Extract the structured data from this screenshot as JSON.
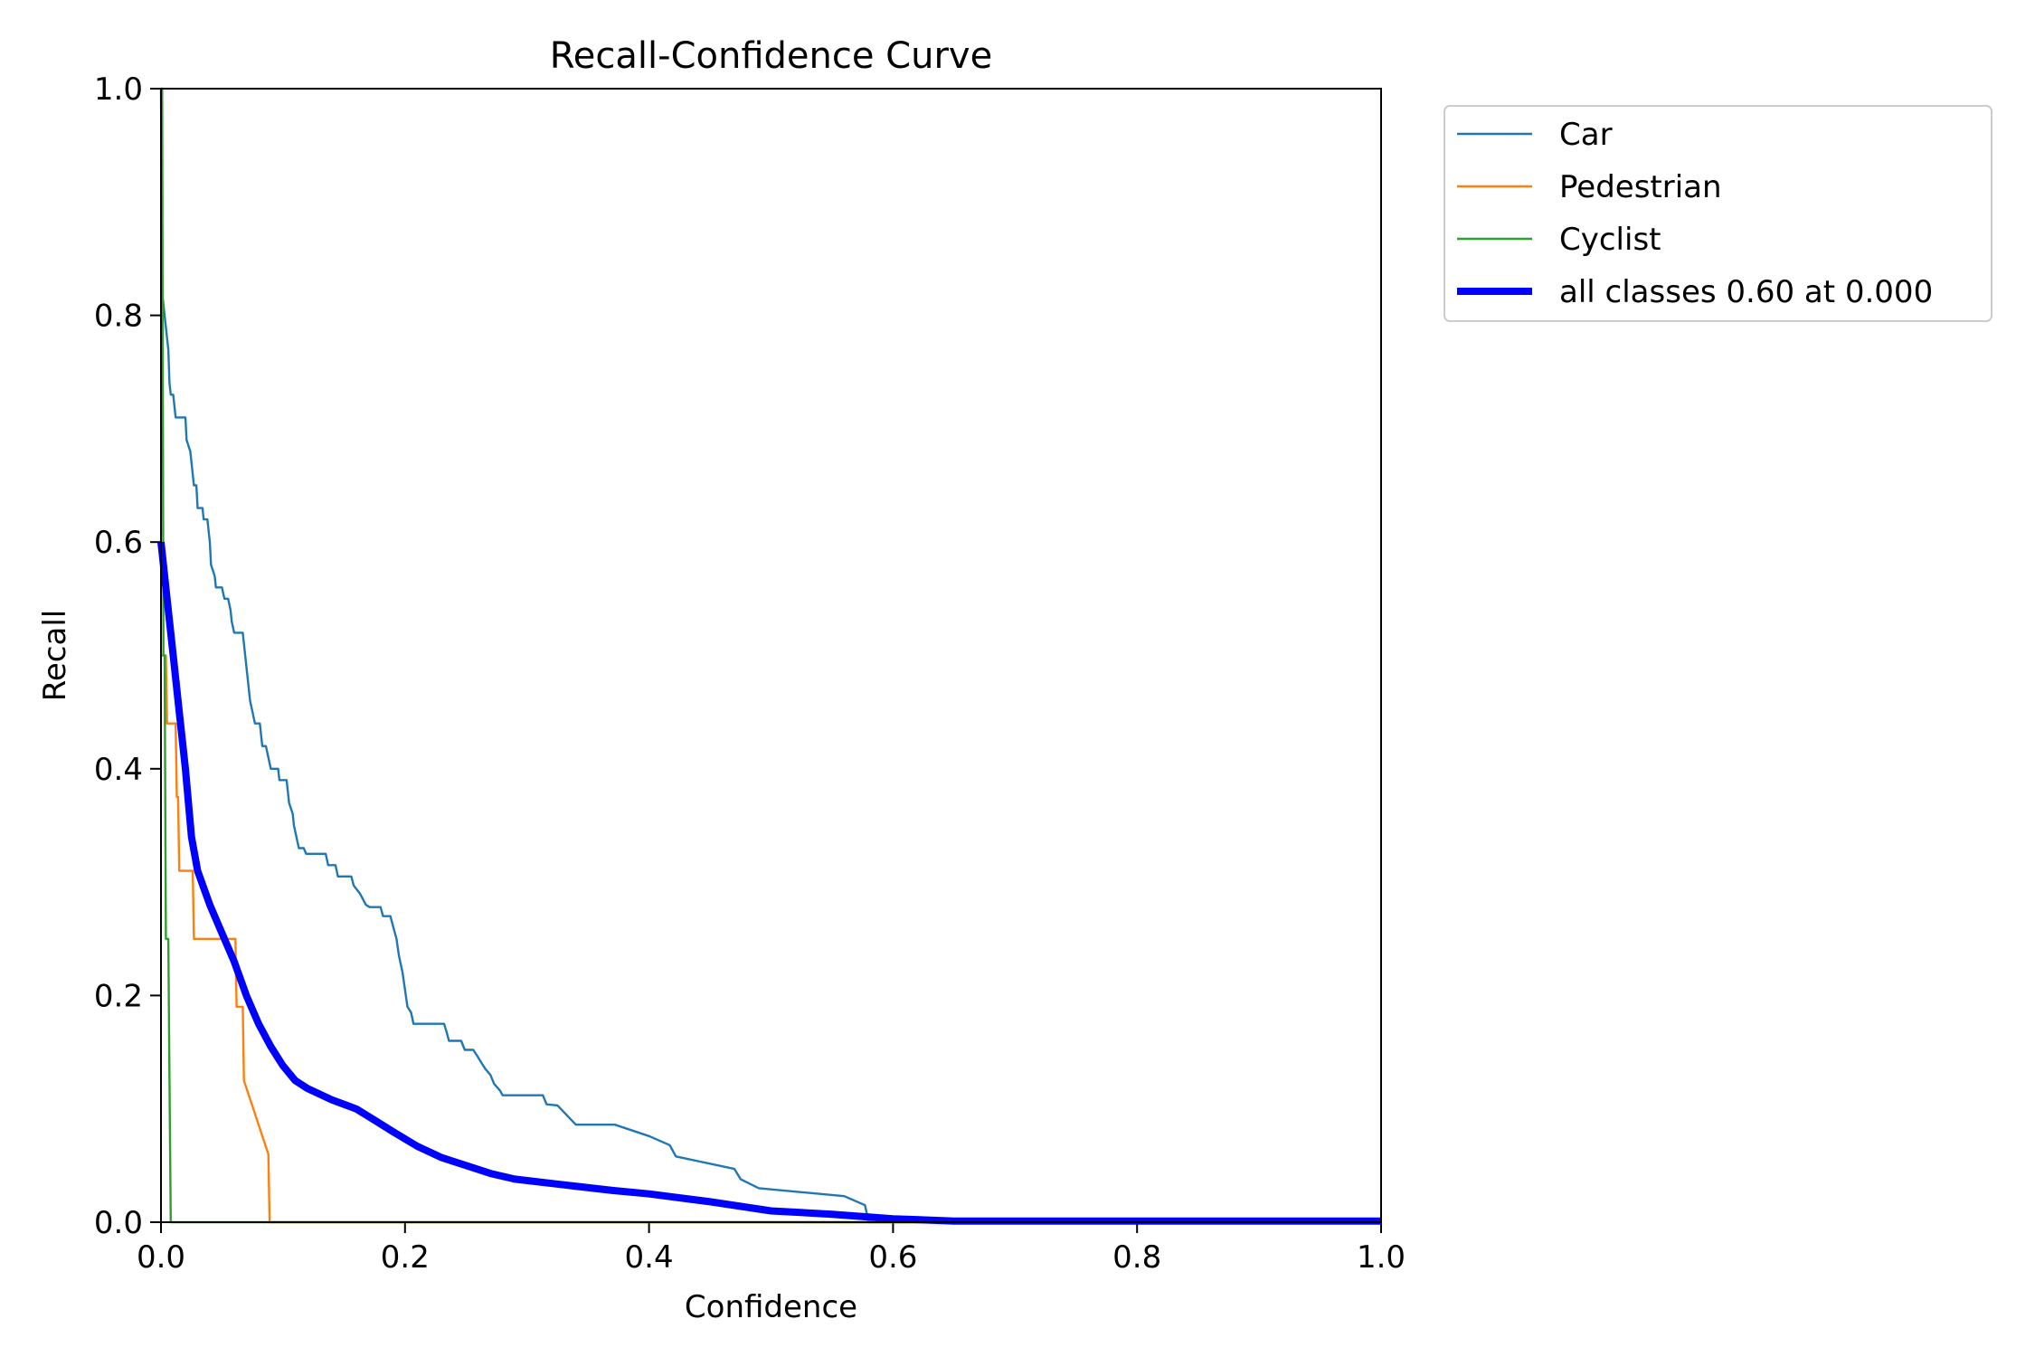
{
  "chart_data": {
    "type": "line",
    "title": "Recall-Confidence Curve",
    "xlabel": "Confidence",
    "ylabel": "Recall",
    "xlim": [
      0.0,
      1.0
    ],
    "ylim": [
      0.0,
      1.0
    ],
    "xticks": [
      0.0,
      0.2,
      0.4,
      0.6,
      0.8,
      1.0
    ],
    "yticks": [
      0.0,
      0.2,
      0.4,
      0.6,
      0.8,
      1.0
    ],
    "xtick_labels": [
      "0.0",
      "0.2",
      "0.4",
      "0.6",
      "0.8",
      "1.0"
    ],
    "ytick_labels": [
      "0.0",
      "0.2",
      "0.4",
      "0.6",
      "0.8",
      "1.0"
    ],
    "grid": false,
    "legend_position": "outside-upper-right",
    "series": [
      {
        "name": "Car",
        "color": "#1f77b4",
        "width": "thin",
        "points": [
          [
            0.0,
            1.0
          ],
          [
            0.001,
            0.82
          ],
          [
            0.003,
            0.8
          ],
          [
            0.005,
            0.78
          ],
          [
            0.006,
            0.77
          ],
          [
            0.007,
            0.74
          ],
          [
            0.008,
            0.73
          ],
          [
            0.01,
            0.73
          ],
          [
            0.012,
            0.71
          ],
          [
            0.02,
            0.71
          ],
          [
            0.021,
            0.69
          ],
          [
            0.024,
            0.68
          ],
          [
            0.026,
            0.66
          ],
          [
            0.027,
            0.65
          ],
          [
            0.029,
            0.65
          ],
          [
            0.03,
            0.63
          ],
          [
            0.034,
            0.63
          ],
          [
            0.035,
            0.62
          ],
          [
            0.038,
            0.62
          ],
          [
            0.04,
            0.6
          ],
          [
            0.041,
            0.58
          ],
          [
            0.044,
            0.57
          ],
          [
            0.045,
            0.56
          ],
          [
            0.05,
            0.56
          ],
          [
            0.052,
            0.55
          ],
          [
            0.055,
            0.55
          ],
          [
            0.057,
            0.54
          ],
          [
            0.058,
            0.53
          ],
          [
            0.06,
            0.52
          ],
          [
            0.067,
            0.52
          ],
          [
            0.069,
            0.5
          ],
          [
            0.071,
            0.48
          ],
          [
            0.073,
            0.46
          ],
          [
            0.075,
            0.45
          ],
          [
            0.077,
            0.44
          ],
          [
            0.081,
            0.44
          ],
          [
            0.083,
            0.42
          ],
          [
            0.086,
            0.42
          ],
          [
            0.088,
            0.41
          ],
          [
            0.09,
            0.4
          ],
          [
            0.096,
            0.4
          ],
          [
            0.097,
            0.39
          ],
          [
            0.103,
            0.39
          ],
          [
            0.105,
            0.37
          ],
          [
            0.108,
            0.36
          ],
          [
            0.109,
            0.35
          ],
          [
            0.111,
            0.34
          ],
          [
            0.113,
            0.33
          ],
          [
            0.117,
            0.33
          ],
          [
            0.119,
            0.325
          ],
          [
            0.135,
            0.325
          ],
          [
            0.137,
            0.315
          ],
          [
            0.143,
            0.315
          ],
          [
            0.145,
            0.305
          ],
          [
            0.156,
            0.305
          ],
          [
            0.158,
            0.297
          ],
          [
            0.163,
            0.29
          ],
          [
            0.168,
            0.28
          ],
          [
            0.171,
            0.278
          ],
          [
            0.18,
            0.278
          ],
          [
            0.182,
            0.27
          ],
          [
            0.188,
            0.27
          ],
          [
            0.19,
            0.262
          ],
          [
            0.193,
            0.25
          ],
          [
            0.195,
            0.235
          ],
          [
            0.198,
            0.22
          ],
          [
            0.2,
            0.205
          ],
          [
            0.202,
            0.19
          ],
          [
            0.205,
            0.185
          ],
          [
            0.207,
            0.175
          ],
          [
            0.232,
            0.175
          ],
          [
            0.234,
            0.168
          ],
          [
            0.236,
            0.16
          ],
          [
            0.246,
            0.16
          ],
          [
            0.249,
            0.152
          ],
          [
            0.256,
            0.152
          ],
          [
            0.259,
            0.147
          ],
          [
            0.263,
            0.14
          ],
          [
            0.266,
            0.135
          ],
          [
            0.27,
            0.13
          ],
          [
            0.273,
            0.122
          ],
          [
            0.278,
            0.116
          ],
          [
            0.28,
            0.112
          ],
          [
            0.313,
            0.112
          ],
          [
            0.316,
            0.104
          ],
          [
            0.325,
            0.103
          ],
          [
            0.34,
            0.086
          ],
          [
            0.372,
            0.086
          ],
          [
            0.4,
            0.076
          ],
          [
            0.417,
            0.068
          ],
          [
            0.422,
            0.058
          ],
          [
            0.47,
            0.047
          ],
          [
            0.475,
            0.038
          ],
          [
            0.49,
            0.03
          ],
          [
            0.56,
            0.023
          ],
          [
            0.577,
            0.015
          ],
          [
            0.58,
            0.0
          ],
          [
            1.0,
            0.0
          ]
        ]
      },
      {
        "name": "Pedestrian",
        "color": "#ff7f0e",
        "width": "thin",
        "points": [
          [
            0.0,
            0.5
          ],
          [
            0.004,
            0.5
          ],
          [
            0.005,
            0.44
          ],
          [
            0.012,
            0.44
          ],
          [
            0.013,
            0.375
          ],
          [
            0.014,
            0.375
          ],
          [
            0.015,
            0.31
          ],
          [
            0.026,
            0.31
          ],
          [
            0.027,
            0.25
          ],
          [
            0.061,
            0.25
          ],
          [
            0.062,
            0.19
          ],
          [
            0.067,
            0.19
          ],
          [
            0.068,
            0.125
          ],
          [
            0.088,
            0.06
          ],
          [
            0.089,
            0.0
          ],
          [
            1.0,
            0.0
          ]
        ]
      },
      {
        "name": "Cyclist",
        "color": "#2ca02c",
        "width": "thin",
        "points": [
          [
            0.0,
            1.0
          ],
          [
            0.001,
            1.0
          ],
          [
            0.002,
            0.5
          ],
          [
            0.003,
            0.5
          ],
          [
            0.004,
            0.25
          ],
          [
            0.006,
            0.25
          ],
          [
            0.007,
            0.125
          ],
          [
            0.008,
            0.0
          ],
          [
            1.0,
            0.0
          ]
        ]
      },
      {
        "name": "all classes 0.60 at 0.000",
        "color": "#0000ff",
        "width": "thick",
        "points": [
          [
            0.0,
            0.6
          ],
          [
            0.005,
            0.55
          ],
          [
            0.01,
            0.5
          ],
          [
            0.015,
            0.45
          ],
          [
            0.02,
            0.4
          ],
          [
            0.025,
            0.34
          ],
          [
            0.03,
            0.31
          ],
          [
            0.04,
            0.28
          ],
          [
            0.05,
            0.255
          ],
          [
            0.06,
            0.23
          ],
          [
            0.07,
            0.2
          ],
          [
            0.08,
            0.175
          ],
          [
            0.09,
            0.155
          ],
          [
            0.1,
            0.138
          ],
          [
            0.11,
            0.125
          ],
          [
            0.12,
            0.118
          ],
          [
            0.14,
            0.108
          ],
          [
            0.16,
            0.1
          ],
          [
            0.175,
            0.09
          ],
          [
            0.19,
            0.08
          ],
          [
            0.21,
            0.067
          ],
          [
            0.23,
            0.057
          ],
          [
            0.25,
            0.05
          ],
          [
            0.27,
            0.043
          ],
          [
            0.29,
            0.038
          ],
          [
            0.33,
            0.033
          ],
          [
            0.37,
            0.028
          ],
          [
            0.4,
            0.025
          ],
          [
            0.45,
            0.018
          ],
          [
            0.5,
            0.01
          ],
          [
            0.55,
            0.007
          ],
          [
            0.6,
            0.003
          ],
          [
            0.65,
            0.001
          ],
          [
            1.0,
            0.001
          ]
        ]
      }
    ]
  }
}
